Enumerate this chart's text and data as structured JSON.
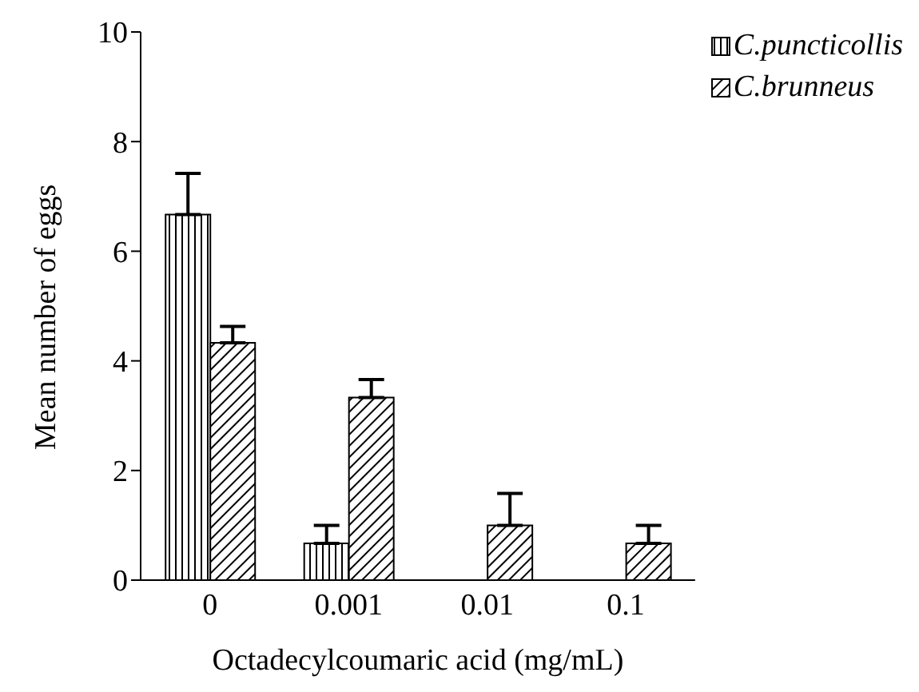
{
  "chart_data": {
    "type": "bar",
    "xlabel": "Octadecylcoumaric acid (mg/mL)",
    "ylabel": "Mean number of eggs",
    "categories": [
      "0",
      "0.001",
      "0.01",
      "0.1"
    ],
    "series": [
      {
        "name": "C.puncticollis",
        "color": "#000000",
        "values": [
          6.67,
          0.67,
          0,
          0
        ],
        "errors": [
          [
            6.67,
            7.42
          ],
          [
            0.67,
            1.0
          ],
          null,
          null
        ]
      },
      {
        "name": "C.brunneus",
        "color": "#000000",
        "values": [
          4.33,
          3.33,
          1.0,
          0.67
        ],
        "errors": [
          [
            4.33,
            4.63
          ],
          [
            3.33,
            3.66
          ],
          [
            1.0,
            1.58
          ],
          [
            0.67,
            1.0
          ]
        ]
      }
    ],
    "ylim": [
      0,
      10
    ],
    "yticks": [
      0,
      2,
      4,
      6,
      8,
      10
    ],
    "grid": false,
    "legend": "top right"
  }
}
